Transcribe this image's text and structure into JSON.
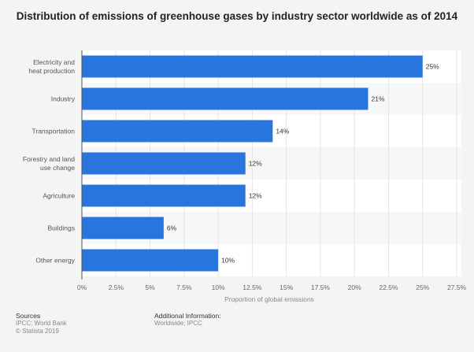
{
  "chart_data": {
    "type": "bar",
    "orientation": "horizontal",
    "title": "Distribution of emissions of greenhouse gases by industry sector worldwide as of 2014",
    "categories": [
      [
        "Electricity and",
        "heat production"
      ],
      [
        "Industry"
      ],
      [
        "Transportation"
      ],
      [
        "Forestry and land",
        "use change"
      ],
      [
        "Agriculture"
      ],
      [
        "Buildings"
      ],
      [
        "Other energy"
      ]
    ],
    "values": [
      25,
      21,
      14,
      12,
      12,
      6,
      10
    ],
    "data_labels": [
      "25%",
      "21%",
      "14%",
      "12%",
      "12%",
      "6%",
      "10%"
    ],
    "xlabel": "Proportion of global emissions",
    "xlim": [
      0,
      27.5
    ],
    "xticks": [
      0,
      2.5,
      5,
      7.5,
      10,
      12.5,
      15,
      17.5,
      20,
      22.5,
      25,
      27.5
    ],
    "xtick_labels": [
      "0%",
      "2.5%",
      "5%",
      "7.5%",
      "10%",
      "12.5%",
      "15%",
      "17.5%",
      "20%",
      "22.5%",
      "25%",
      "27.5%"
    ],
    "grid": true,
    "bar_color": "#2876dd"
  },
  "footer": {
    "sources_label": "Sources",
    "sources": "IPCC; World Bank",
    "copyright": "© Statista 2019",
    "additional_label": "Additional Information:",
    "additional": "Worldwide; IPCC"
  }
}
